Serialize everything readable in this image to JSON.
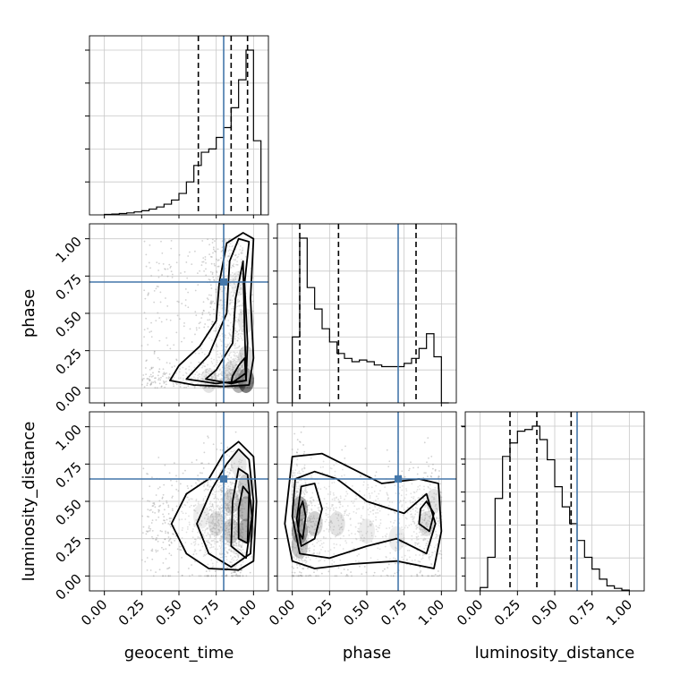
{
  "chart_data": {
    "type": "corner",
    "parameters": [
      "geocent_time",
      "phase",
      "luminosity_distance"
    ],
    "axis_labels": {
      "geocent_time": "geocent_time",
      "phase": "phase",
      "luminosity_distance": "luminosity_distance"
    },
    "tick_values": [
      0.0,
      0.25,
      0.5,
      0.75,
      1.0
    ],
    "tick_labels": [
      "0.00",
      "0.25",
      "0.50",
      "0.75",
      "1.00"
    ],
    "axis_range": [
      -0.1,
      1.1
    ],
    "grid": true,
    "truths": {
      "geocent_time": 0.8,
      "phase": 0.71,
      "luminosity_distance": 0.65
    },
    "truth_color": "#4477aa",
    "quantiles": {
      "geocent_time": [
        0.63,
        0.85,
        0.96
      ],
      "phase": [
        0.05,
        0.31,
        0.83
      ],
      "luminosity_distance": [
        0.2,
        0.38,
        0.61
      ]
    },
    "histograms": {
      "geocent_time": {
        "bin_edges": [
          0.0,
          0.05,
          0.1,
          0.15,
          0.2,
          0.25,
          0.3,
          0.35,
          0.4,
          0.45,
          0.5,
          0.55,
          0.6,
          0.65,
          0.7,
          0.75,
          0.8,
          0.85,
          0.9,
          0.95,
          1.0,
          1.05
        ],
        "counts": [
          0.3,
          0.5,
          0.8,
          1.2,
          1.8,
          2.5,
          3.5,
          4.8,
          6.5,
          9,
          13,
          20,
          30,
          38,
          40,
          47,
          53,
          65,
          82,
          100,
          45
        ]
      },
      "phase": {
        "bin_edges": [
          0.0,
          0.05,
          0.1,
          0.15,
          0.2,
          0.25,
          0.3,
          0.35,
          0.4,
          0.45,
          0.5,
          0.55,
          0.6,
          0.65,
          0.7,
          0.75,
          0.8,
          0.85,
          0.9,
          0.95,
          1.0,
          1.05
        ],
        "counts": [
          40,
          100,
          70,
          57,
          45,
          37,
          30,
          27,
          25,
          26,
          25,
          23,
          22,
          22,
          22,
          24,
          27,
          33,
          42,
          28,
          0
        ]
      },
      "luminosity_distance": {
        "bin_edges": [
          0.0,
          0.05,
          0.1,
          0.15,
          0.2,
          0.25,
          0.3,
          0.35,
          0.4,
          0.45,
          0.5,
          0.55,
          0.6,
          0.65,
          0.7,
          0.75,
          0.8,
          0.85,
          0.9,
          0.95,
          1.0
        ],
        "counts": [
          2,
          20,
          55,
          80,
          88,
          95,
          96,
          98,
          90,
          78,
          62,
          50,
          40,
          30,
          20,
          13,
          7,
          3,
          1.5,
          0.5
        ]
      }
    },
    "scatter_panels": [
      {
        "x": "geocent_time",
        "y": "phase"
      },
      {
        "x": "geocent_time",
        "y": "luminosity_distance"
      },
      {
        "x": "phase",
        "y": "luminosity_distance"
      }
    ]
  }
}
